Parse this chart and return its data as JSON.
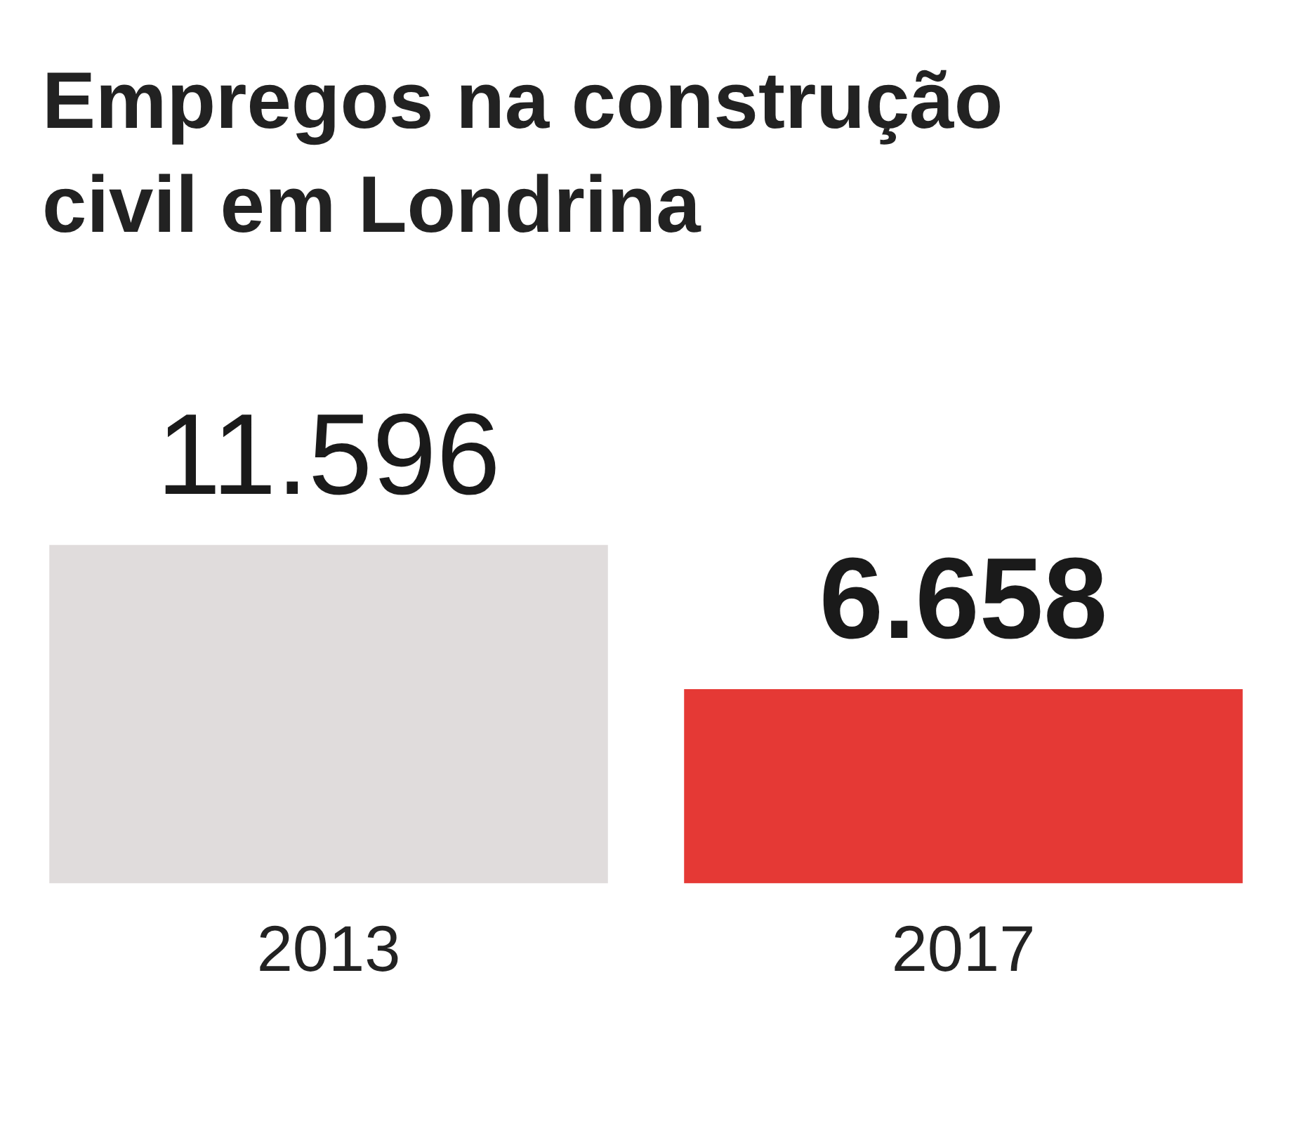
{
  "chart_data": {
    "type": "bar",
    "title": "Empregos na construção civil em Londrina",
    "categories": [
      "2013",
      "2017"
    ],
    "values": [
      11596,
      6658
    ],
    "colors": [
      "#e0dcdc",
      "#e53935"
    ],
    "value_labels": [
      "11.596",
      "6.658"
    ]
  }
}
